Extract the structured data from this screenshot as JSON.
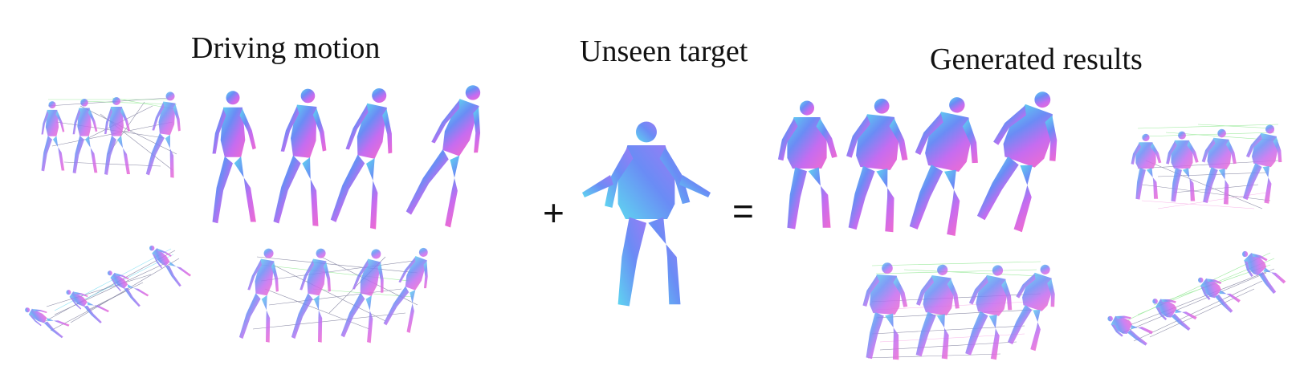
{
  "titles": {
    "driving": "Driving motion",
    "unseen": "Unseen target",
    "generated": "Generated results"
  },
  "operators": {
    "plus": "+",
    "equals": "="
  },
  "colors": {
    "pink": "#f06bd0",
    "blue": "#6a8cf5",
    "cyan": "#5fd6f0",
    "green": "#7be37c",
    "violet": "#a56cf2",
    "line_dark": "#303060"
  }
}
